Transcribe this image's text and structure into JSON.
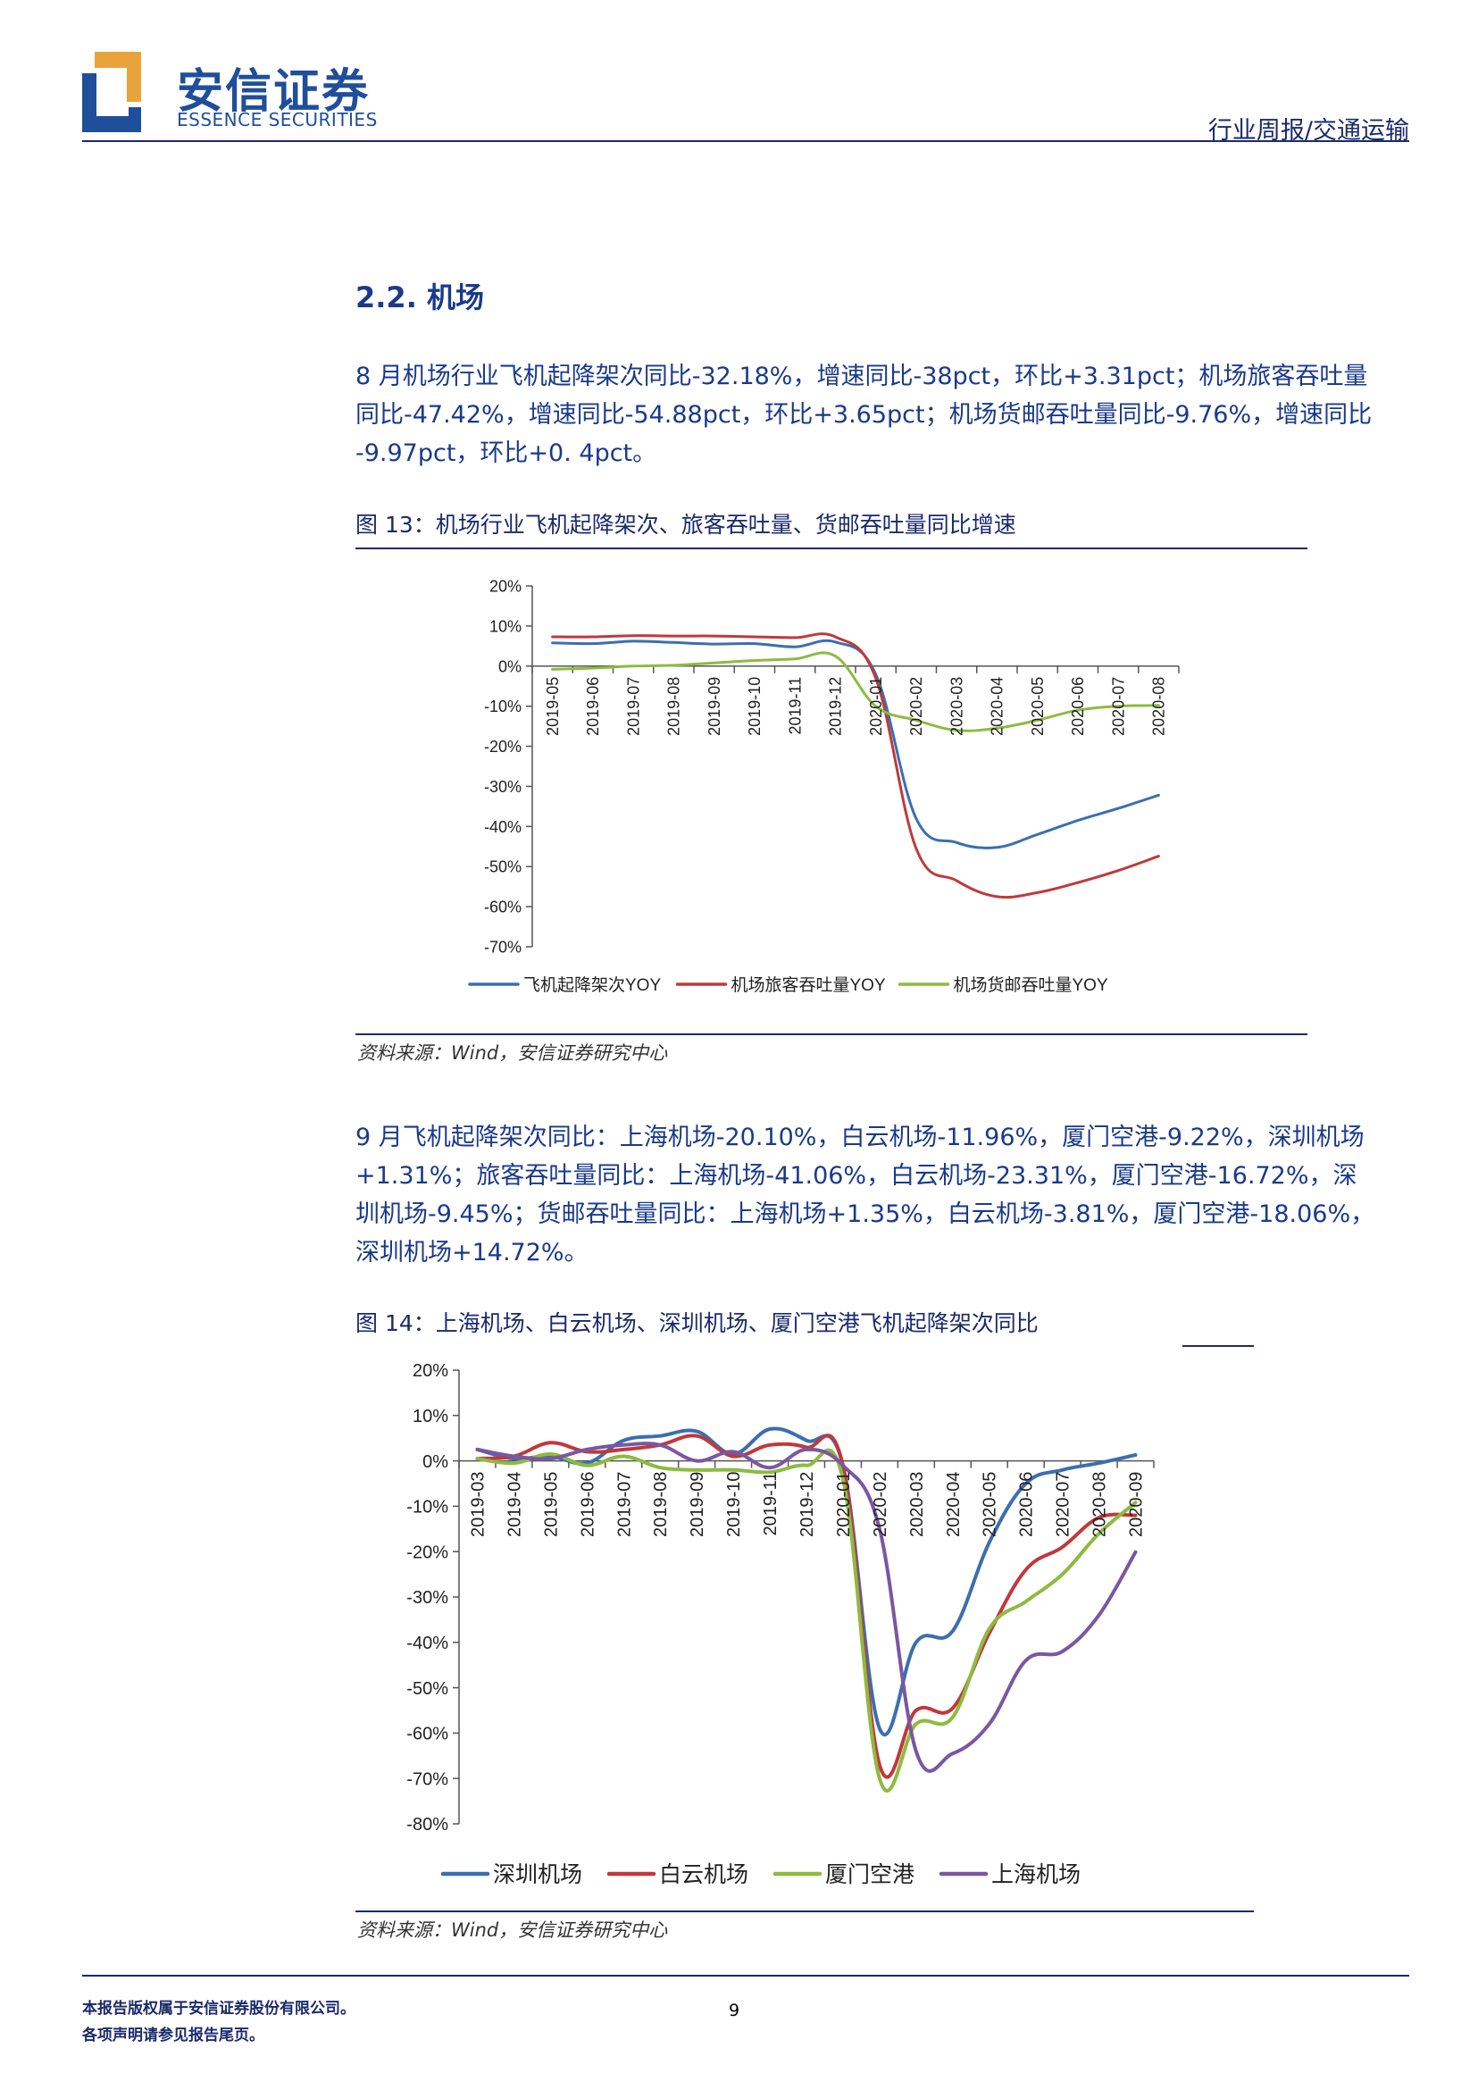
{
  "header": {
    "company_cn": "安信证券",
    "company_en": "ESSENCE SECURITIES",
    "report_type": "行业周报/交通运输",
    "brand_colors": {
      "blue": "#1f4e9b",
      "orange": "#e8a33b",
      "navy": "#1b2a6b"
    }
  },
  "section": {
    "title": "2.2. 机场"
  },
  "paragraph1": [
    "8 月机场行业飞机起降架次同比-32.18%，增速同比-38pct，环比+3.31pct；机场旅客吞吐量",
    "同比-47.42%，增速同比-54.88pct，环比+3.65pct；机场货邮吞吐量同比-9.76%，增速同比",
    "-9.97pct，环比+0. 4pct。"
  ],
  "figure13": {
    "title": "图 13：机场行业飞机起降架次、旅客吞吐量、货邮吞吐量同比增速",
    "source": "资料来源：Wind，安信证券研究中心"
  },
  "paragraph2": [
    "9 月飞机起降架次同比：上海机场-20.10%，白云机场-11.96%，厦门空港-9.22%，深圳机场",
    "+1.31%；旅客吞吐量同比：上海机场-41.06%，白云机场-23.31%，厦门空港-16.72%，深",
    "圳机场-9.45%；货邮吞吐量同比：上海机场+1.35%，白云机场-3.81%，厦门空港-18.06%，",
    "深圳机场+14.72%。"
  ],
  "figure14": {
    "title": "图 14：上海机场、白云机场、深圳机场、厦门空港飞机起降架次同比",
    "source": "资料来源：Wind，安信证券研究中心"
  },
  "footer": {
    "line1": "本报告版权属于安信证券股份有限公司。",
    "line2": "各项声明请参见报告尾页。",
    "page": "9"
  },
  "chart_data": [
    {
      "type": "line",
      "title": "",
      "categories": [
        "2019-05",
        "2019-06",
        "2019-07",
        "2019-08",
        "2019-09",
        "2019-10",
        "2019-11",
        "2019-12",
        "2020-01",
        "2020-02",
        "2020-03",
        "2020-04",
        "2020-05",
        "2020-06",
        "2020-07",
        "2020-08"
      ],
      "ylim": [
        -70,
        20
      ],
      "yticks": [
        20,
        10,
        0,
        -10,
        -20,
        -30,
        -40,
        -50,
        -60,
        -70
      ],
      "ytick_labels": [
        "20%",
        "10%",
        "0%",
        "-10%",
        "-20%",
        "-30%",
        "-40%",
        "-50%",
        "-60%",
        "-70%"
      ],
      "legend_position": "bottom",
      "series": [
        {
          "name": "飞机起降架次YOY",
          "color": "#3a6fb0",
          "values": [
            5.8,
            5.6,
            6.2,
            5.9,
            5.5,
            5.6,
            4.8,
            6.0,
            -2.0,
            -38.0,
            -44.0,
            -45.2,
            -42.0,
            -38.5,
            -35.5,
            -32.2
          ]
        },
        {
          "name": "机场旅客吞吐量YOY",
          "color": "#c0393b",
          "values": [
            7.3,
            7.3,
            7.6,
            7.5,
            7.5,
            7.3,
            7.1,
            7.3,
            -3.0,
            -45.5,
            -53.5,
            -57.5,
            -56.5,
            -54.0,
            -51.0,
            -47.4
          ]
        },
        {
          "name": "机场货邮吞吐量YOY",
          "color": "#8dbb3f",
          "values": [
            -0.8,
            -0.5,
            0.0,
            0.2,
            0.8,
            1.4,
            1.8,
            2.5,
            -10.0,
            -13.5,
            -16.0,
            -15.5,
            -13.5,
            -11.0,
            -10.0,
            -9.8
          ]
        }
      ]
    },
    {
      "type": "line",
      "title": "",
      "categories": [
        "2019-03",
        "2019-04",
        "2019-05",
        "2019-06",
        "2019-07",
        "2019-08",
        "2019-09",
        "2019-10",
        "2019-11",
        "2019-12",
        "2020-01",
        "2020-02",
        "2020-03",
        "2020-04",
        "2020-05",
        "2020-06",
        "2020-07",
        "2020-08",
        "2020-09"
      ],
      "ylim": [
        -80,
        20
      ],
      "yticks": [
        20,
        10,
        0,
        -10,
        -20,
        -30,
        -40,
        -50,
        -60,
        -70,
        -80
      ],
      "ytick_labels": [
        "20%",
        "10%",
        "0%",
        "-10%",
        "-20%",
        "-30%",
        "-40%",
        "-50%",
        "-60%",
        "-70%",
        "-80%"
      ],
      "legend_position": "bottom",
      "series": [
        {
          "name": "深圳机场",
          "color": "#3a6fb0",
          "values": [
            2.5,
            0.5,
            1.0,
            -0.5,
            4.5,
            5.5,
            6.5,
            1.5,
            7.0,
            4.5,
            -1.0,
            -59.0,
            -40.0,
            -37.5,
            -18.0,
            -5.0,
            -2.0,
            -0.5,
            1.3
          ]
        },
        {
          "name": "白云机场",
          "color": "#c0393b",
          "values": [
            0.5,
            1.0,
            4.0,
            2.0,
            2.5,
            3.5,
            5.5,
            1.0,
            3.5,
            3.0,
            -1.0,
            -67.0,
            -55.0,
            -54.5,
            -38.0,
            -24.0,
            -19.0,
            -12.5,
            -12.0
          ]
        },
        {
          "name": "厦门空港",
          "color": "#8dbb3f",
          "values": [
            0.5,
            -0.5,
            1.5,
            -1.0,
            1.0,
            -1.5,
            -2.0,
            -2.0,
            -2.5,
            -1.0,
            -4.0,
            -70.0,
            -58.0,
            -56.5,
            -37.0,
            -31.0,
            -25.0,
            -16.0,
            -9.2
          ]
        },
        {
          "name": "上海机场",
          "color": "#7b56a3",
          "values": [
            2.5,
            1.0,
            0.5,
            2.5,
            3.5,
            3.5,
            0.0,
            2.0,
            -1.5,
            2.5,
            -1.0,
            -15.0,
            -64.0,
            -64.5,
            -58.0,
            -44.0,
            -42.0,
            -34.0,
            -20.1
          ]
        }
      ]
    }
  ]
}
